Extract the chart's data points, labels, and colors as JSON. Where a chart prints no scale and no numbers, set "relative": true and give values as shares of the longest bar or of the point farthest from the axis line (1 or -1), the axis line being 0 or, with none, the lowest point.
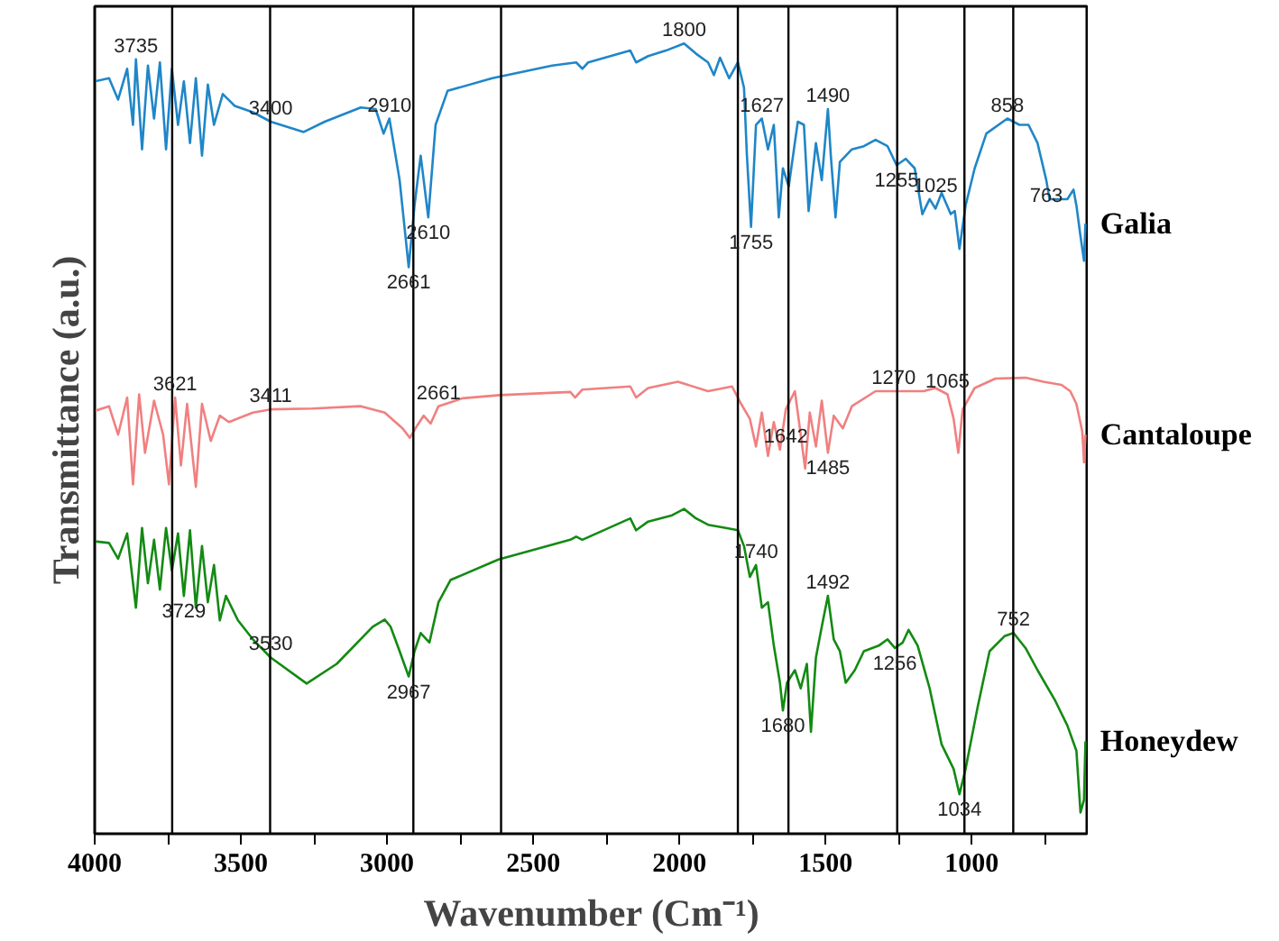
{
  "chart_data": {
    "type": "line",
    "relative": true,
    "xlabel": "Wavenumber (Cm⁻¹)",
    "ylabel": "Transmittance (a.u.)",
    "xlim": [
      4000,
      600
    ],
    "xticks": [
      4000,
      {
        "value": 3750,
        "label": null
      },
      3500,
      {
        "value": 3250,
        "label": null
      },
      3000,
      {
        "value": 2750,
        "label": null
      },
      2500,
      {
        "value": 2250,
        "label": null
      },
      2000,
      {
        "value": 1750,
        "label": null
      },
      1500,
      {
        "value": 1250,
        "label": null
      },
      1000,
      {
        "value": 750,
        "label": null
      }
    ],
    "series": [
      {
        "name": "Galia",
        "color": "#1f86c8",
        "x": [
          4000,
          3951,
          3920,
          3889,
          3869,
          3859,
          3838,
          3818,
          3797,
          3777,
          3756,
          3736,
          3715,
          3695,
          3674,
          3654,
          3633,
          3613,
          3592,
          3562,
          3521,
          3459,
          3398,
          3285,
          3213,
          3090,
          3039,
          3012,
          2992,
          2957,
          2926,
          2906,
          2885,
          2859,
          2834,
          2793,
          2640,
          2435,
          2353,
          2332,
          2312,
          2168,
          2148,
          2107,
          2046,
          1984,
          1943,
          1902,
          1882,
          1861,
          1830,
          1800,
          1779,
          1769,
          1755,
          1738,
          1718,
          1697,
          1677,
          1660,
          1646,
          1626,
          1595,
          1574,
          1558,
          1533,
          1513,
          1492,
          1482,
          1466,
          1451,
          1410,
          1369,
          1329,
          1288,
          1257,
          1226,
          1195,
          1169,
          1144,
          1124,
          1103,
          1072,
          1058,
          1042,
          1021,
          990,
          950,
          878,
          837,
          806,
          775,
          745,
          734,
          673,
          652,
          642,
          628,
          616,
          611
        ],
        "values": [
          0.952,
          0.956,
          0.929,
          0.968,
          0.897,
          0.98,
          0.866,
          0.972,
          0.905,
          0.976,
          0.866,
          0.968,
          0.897,
          0.952,
          0.874,
          0.956,
          0.858,
          0.948,
          0.897,
          0.936,
          0.921,
          0.913,
          0.901,
          0.888,
          0.901,
          0.919,
          0.917,
          0.886,
          0.905,
          0.827,
          0.717,
          0.795,
          0.858,
          0.78,
          0.897,
          0.94,
          0.956,
          0.972,
          0.976,
          0.968,
          0.976,
          0.991,
          0.976,
          0.984,
          0.991,
          1.0,
          0.987,
          0.976,
          0.96,
          0.982,
          0.956,
          0.976,
          0.944,
          0.858,
          0.768,
          0.897,
          0.905,
          0.866,
          0.897,
          0.78,
          0.842,
          0.819,
          0.901,
          0.897,
          0.788,
          0.874,
          0.827,
          0.917,
          0.858,
          0.78,
          0.85,
          0.866,
          0.87,
          0.878,
          0.87,
          0.846,
          0.854,
          0.842,
          0.784,
          0.803,
          0.791,
          0.811,
          0.784,
          0.788,
          0.74,
          0.795,
          0.842,
          0.886,
          0.905,
          0.897,
          0.897,
          0.874,
          0.827,
          0.803,
          0.803,
          0.815,
          0.795,
          0.756,
          0.725,
          0.772
        ]
      },
      {
        "name": "Cantaloupe",
        "color": "#f08080",
        "x": [
          4000,
          3951,
          3920,
          3889,
          3869,
          3848,
          3828,
          3797,
          3766,
          3746,
          3725,
          3705,
          3684,
          3654,
          3633,
          3603,
          3572,
          3541,
          3459,
          3398,
          3254,
          3090,
          3008,
          2947,
          2922,
          2896,
          2875,
          2851,
          2824,
          2742,
          2615,
          2373,
          2357,
          2332,
          2168,
          2148,
          2107,
          2005,
          1902,
          1820,
          1789,
          1759,
          1738,
          1718,
          1697,
          1677,
          1656,
          1636,
          1605,
          1585,
          1570,
          1554,
          1533,
          1513,
          1492,
          1472,
          1441,
          1410,
          1329,
          1267,
          1165,
          1124,
          1083,
          1062,
          1046,
          1031,
          990,
          919,
          816,
          755,
          693,
          663,
          642,
          622,
          616,
          611
        ],
        "values": [
          0.535,
          0.541,
          0.505,
          0.552,
          0.442,
          0.556,
          0.482,
          0.548,
          0.505,
          0.442,
          0.552,
          0.466,
          0.544,
          0.439,
          0.544,
          0.497,
          0.529,
          0.521,
          0.533,
          0.537,
          0.538,
          0.541,
          0.533,
          0.513,
          0.501,
          0.517,
          0.529,
          0.519,
          0.541,
          0.551,
          0.555,
          0.559,
          0.552,
          0.562,
          0.566,
          0.552,
          0.564,
          0.572,
          0.56,
          0.566,
          0.544,
          0.525,
          0.49,
          0.533,
          0.478,
          0.521,
          0.486,
          0.537,
          0.56,
          0.505,
          0.462,
          0.533,
          0.49,
          0.548,
          0.482,
          0.529,
          0.513,
          0.541,
          0.56,
          0.56,
          0.56,
          0.564,
          0.556,
          0.525,
          0.482,
          0.537,
          0.564,
          0.576,
          0.577,
          0.572,
          0.568,
          0.56,
          0.544,
          0.509,
          0.47,
          0.505
        ]
      },
      {
        "name": "Honeydew",
        "color": "#138a13",
        "x": [
          4000,
          3951,
          3920,
          3889,
          3859,
          3838,
          3818,
          3797,
          3777,
          3756,
          3736,
          3715,
          3695,
          3674,
          3654,
          3633,
          3613,
          3592,
          3572,
          3551,
          3510,
          3459,
          3398,
          3275,
          3172,
          3049,
          3008,
          2988,
          2957,
          2926,
          2906,
          2885,
          2855,
          2824,
          2783,
          2619,
          2373,
          2353,
          2332,
          2168,
          2148,
          2107,
          2025,
          1984,
          1943,
          1902,
          1841,
          1800,
          1779,
          1759,
          1738,
          1718,
          1697,
          1677,
          1656,
          1646,
          1632,
          1605,
          1585,
          1564,
          1550,
          1533,
          1513,
          1492,
          1472,
          1451,
          1431,
          1400,
          1369,
          1318,
          1288,
          1263,
          1236,
          1216,
          1185,
          1144,
          1103,
          1062,
          1042,
          1021,
          980,
          939,
          888,
          857,
          816,
          775,
          714,
          673,
          642,
          628,
          616,
          611
        ],
        "values": [
          0.37,
          0.368,
          0.348,
          0.38,
          0.286,
          0.387,
          0.317,
          0.372,
          0.309,
          0.387,
          0.333,
          0.38,
          0.301,
          0.384,
          0.286,
          0.364,
          0.293,
          0.34,
          0.27,
          0.301,
          0.27,
          0.246,
          0.223,
          0.19,
          0.215,
          0.262,
          0.271,
          0.262,
          0.231,
          0.199,
          0.231,
          0.254,
          0.242,
          0.293,
          0.321,
          0.347,
          0.372,
          0.376,
          0.372,
          0.399,
          0.384,
          0.395,
          0.403,
          0.411,
          0.399,
          0.391,
          0.387,
          0.384,
          0.364,
          0.325,
          0.34,
          0.286,
          0.293,
          0.238,
          0.191,
          0.156,
          0.191,
          0.207,
          0.184,
          0.215,
          0.129,
          0.223,
          0.262,
          0.301,
          0.246,
          0.231,
          0.191,
          0.207,
          0.231,
          0.238,
          0.246,
          0.235,
          0.242,
          0.258,
          0.238,
          0.184,
          0.113,
          0.082,
          0.05,
          0.082,
          0.16,
          0.231,
          0.25,
          0.254,
          0.235,
          0.207,
          0.168,
          0.137,
          0.105,
          0.027,
          0.043,
          0.117
        ]
      }
    ],
    "ref_lines": [
      {
        "axis": "x",
        "value": 3735,
        "color": "#000000"
      },
      {
        "axis": "x",
        "value": 3400,
        "color": "#000000"
      },
      {
        "axis": "x",
        "value": 2910,
        "color": "#000000"
      },
      {
        "axis": "x",
        "value": 2610,
        "color": "#000000"
      },
      {
        "axis": "x",
        "value": 1800,
        "color": "#000000"
      },
      {
        "axis": "x",
        "value": 1627,
        "color": "#000000"
      },
      {
        "axis": "x",
        "value": 1255,
        "color": "#000000"
      },
      {
        "axis": "x",
        "value": 1025,
        "color": "#000000"
      },
      {
        "axis": "x",
        "value": 858,
        "color": "#000000"
      }
    ],
    "annotations": [
      {
        "text": "3735",
        "x": 3859,
        "y": 0.98
      },
      {
        "text": "3400",
        "x": 3398,
        "y": 0.901
      },
      {
        "text": "2910",
        "x": 2992,
        "y": 0.905
      },
      {
        "text": "2610",
        "x": 2859,
        "y": 0.78
      },
      {
        "text": "2661",
        "x": 2926,
        "y": 0.717
      },
      {
        "text": "1800",
        "x": 1984,
        "y": 1.0
      },
      {
        "text": "1627",
        "x": 1718,
        "y": 0.905
      },
      {
        "text": "1490",
        "x": 1492,
        "y": 0.917
      },
      {
        "text": "1755",
        "x": 1755,
        "y": 0.768
      },
      {
        "text": "1255",
        "x": 1257,
        "y": 0.846
      },
      {
        "text": "1025",
        "x": 1124,
        "y": 0.803
      },
      {
        "text": "858",
        "x": 878,
        "y": 0.905
      },
      {
        "text": "763",
        "x": 745,
        "y": 0.827
      },
      {
        "text": "3621",
        "x": 3725,
        "y": 0.552
      },
      {
        "text": "3411",
        "x": 3398,
        "y": 0.537
      },
      {
        "text": "2661",
        "x": 2824,
        "y": 0.541
      },
      {
        "text": "1270",
        "x": 1267,
        "y": 0.56
      },
      {
        "text": "1065",
        "x": 1083,
        "y": 0.556
      },
      {
        "text": "1642",
        "x": 1636,
        "y": 0.486
      },
      {
        "text": "1485",
        "x": 1492,
        "y": 0.482
      },
      {
        "text": "3729",
        "x": 3695,
        "y": 0.301
      },
      {
        "text": "3530",
        "x": 3398,
        "y": 0.223
      },
      {
        "text": "2967",
        "x": 2926,
        "y": 0.199
      },
      {
        "text": "1740",
        "x": 1738,
        "y": 0.34
      },
      {
        "text": "1492",
        "x": 1492,
        "y": 0.301
      },
      {
        "text": "1680",
        "x": 1646,
        "y": 0.156
      },
      {
        "text": "1256",
        "x": 1263,
        "y": 0.235
      },
      {
        "text": "752",
        "x": 857,
        "y": 0.254
      },
      {
        "text": "1034",
        "x": 1042,
        "y": 0.05
      }
    ]
  }
}
